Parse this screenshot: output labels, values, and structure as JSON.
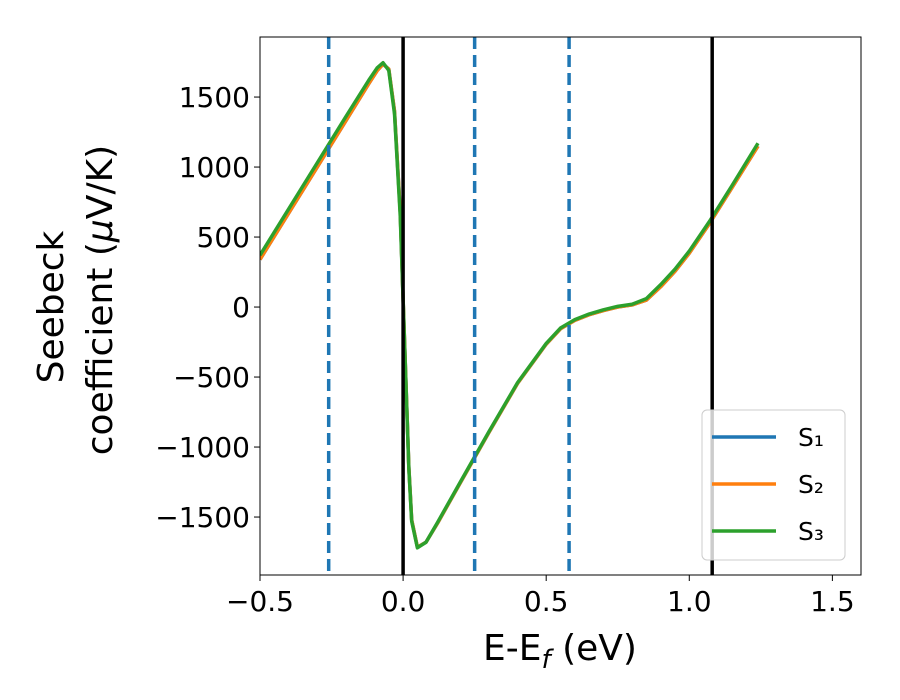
{
  "chart_data": {
    "type": "line",
    "xlabel": [
      "E-E",
      "f",
      " (eV)"
    ],
    "ylabel": [
      "Seebeck",
      "coefficient  (",
      "μ",
      "V/K)"
    ],
    "x": [
      -0.5,
      -0.4,
      -0.3,
      -0.2,
      -0.12,
      -0.09,
      -0.07,
      -0.05,
      -0.03,
      -0.01,
      0,
      0.01,
      0.02,
      0.03,
      0.05,
      0.08,
      0.12,
      0.2,
      0.3,
      0.4,
      0.5,
      0.55,
      0.6,
      0.65,
      0.7,
      0.75,
      0.8,
      0.85,
      0.9,
      0.95,
      1.0,
      1.07,
      1.15,
      1.24
    ],
    "series": [
      {
        "name": "S₁",
        "color": "#1f77b4",
        "values": [
          340,
          670,
          1000,
          1330,
          1595,
          1690,
          1735,
          1700,
          1400,
          680,
          60,
          -540,
          -1140,
          -1520,
          -1715,
          -1680,
          -1545,
          -1255,
          -895,
          -545,
          -265,
          -155,
          -95,
          -55,
          -25,
          0,
          15,
          50,
          145,
          255,
          385,
          595,
          855,
          1150
        ]
      },
      {
        "name": "S₂",
        "color": "#ff7f0e",
        "values": [
          340,
          670,
          1000,
          1330,
          1595,
          1690,
          1735,
          1700,
          1400,
          680,
          60,
          -540,
          -1140,
          -1520,
          -1715,
          -1680,
          -1545,
          -1255,
          -895,
          -545,
          -265,
          -155,
          -95,
          -55,
          -25,
          0,
          15,
          50,
          145,
          255,
          385,
          595,
          855,
          1150
        ]
      },
      {
        "name": "S₃",
        "color": "#2ca02c",
        "values": [
          370,
          700,
          1030,
          1360,
          1620,
          1710,
          1745,
          1690,
          1380,
          650,
          50,
          -550,
          -1150,
          -1530,
          -1720,
          -1680,
          -1540,
          -1250,
          -890,
          -540,
          -260,
          -150,
          -90,
          -50,
          -20,
          5,
          20,
          60,
          160,
          270,
          400,
          610,
          870,
          1170
        ]
      }
    ],
    "vlines": [
      {
        "x": -0.26,
        "color": "#1f77b4",
        "dashed": true
      },
      {
        "x": 0,
        "color": "#000000",
        "dashed": false
      },
      {
        "x": 0.25,
        "color": "#1f77b4",
        "dashed": true
      },
      {
        "x": 0.58,
        "color": "#1f77b4",
        "dashed": true
      },
      {
        "x": 1.08,
        "color": "#000000",
        "dashed": false
      }
    ],
    "xlim": [
      -0.5,
      1.6
    ],
    "ylim": [
      -1914,
      1929
    ],
    "xticks": [
      {
        "value": -0.5,
        "label": "−0.5"
      },
      {
        "value": 0,
        "label": "0.0"
      },
      {
        "value": 0.5,
        "label": "0.5"
      },
      {
        "value": 1,
        "label": "1.0"
      },
      {
        "value": 1.5,
        "label": "1.5"
      }
    ],
    "yticks": [
      {
        "value": -1500,
        "label": "−1500"
      },
      {
        "value": -1000,
        "label": "−1000"
      },
      {
        "value": -500,
        "label": "−500"
      },
      0,
      500,
      1000,
      1500
    ],
    "legend": "lower right",
    "grid": false
  }
}
